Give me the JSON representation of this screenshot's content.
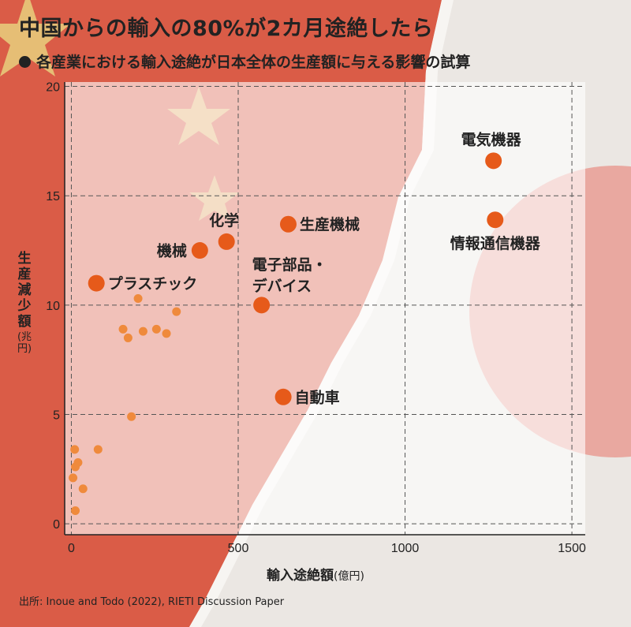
{
  "header": {
    "title": "中国からの輸入の80%が2カ月途絶したら",
    "subtitle": "各産業における輸入途絶が日本全体の生産額に与える影響の試算"
  },
  "axes": {
    "y_label_chars": [
      "生",
      "産",
      "減",
      "少",
      "額"
    ],
    "y_unit": "(兆円)",
    "x_label": "輸入途絶額",
    "x_unit": "(億円)"
  },
  "source": "出所: Inoue and Todo (2022), RIETI Discussion Paper",
  "colors": {
    "point": "#e65a1a",
    "small_point": "#ef8a3c",
    "china_red": "#d8503a",
    "japan_red": "#e8756a",
    "star": "#e7c97a"
  },
  "chart_data": {
    "type": "scatter",
    "title": "中国からの輸入の80%が2カ月途絶したら",
    "subtitle": "各産業における輸入途絶が日本全体の生産額に与える影響の試算",
    "xlabel": "輸入途絶額(億円)",
    "ylabel": "生産減少額(兆円)",
    "xlim": [
      -20,
      1540
    ],
    "ylim": [
      -0.5,
      20.2
    ],
    "xticks": [
      0,
      500,
      1000,
      1500
    ],
    "yticks": [
      0,
      5,
      10,
      15,
      20
    ],
    "grid": true,
    "labeled_points": [
      {
        "name": "電気機器",
        "x": 1265,
        "y": 16.6,
        "label_pos": "above"
      },
      {
        "name": "情報通信機器",
        "x": 1270,
        "y": 13.9,
        "label_pos": "below"
      },
      {
        "name": "生産機械",
        "x": 650,
        "y": 13.7,
        "label_pos": "right"
      },
      {
        "name": "化学",
        "x": 465,
        "y": 12.9,
        "label_pos": "above"
      },
      {
        "name": "機械",
        "x": 385,
        "y": 12.5,
        "label_pos": "left"
      },
      {
        "name": "プラスチック",
        "x": 75,
        "y": 11.0,
        "label_pos": "right"
      },
      {
        "name": "電子部品・デバイス",
        "x": 570,
        "y": 10.0,
        "label_pos": "above"
      },
      {
        "name": "自動車",
        "x": 635,
        "y": 5.8,
        "label_pos": "right"
      }
    ],
    "other_points": [
      {
        "x": 200,
        "y": 10.3
      },
      {
        "x": 315,
        "y": 9.7
      },
      {
        "x": 155,
        "y": 8.9
      },
      {
        "x": 215,
        "y": 8.8
      },
      {
        "x": 255,
        "y": 8.9
      },
      {
        "x": 285,
        "y": 8.7
      },
      {
        "x": 170,
        "y": 8.5
      },
      {
        "x": 180,
        "y": 4.9
      },
      {
        "x": 10,
        "y": 3.4
      },
      {
        "x": 80,
        "y": 3.4
      },
      {
        "x": 20,
        "y": 2.8
      },
      {
        "x": 12,
        "y": 2.6
      },
      {
        "x": 5,
        "y": 2.1
      },
      {
        "x": 35,
        "y": 1.6
      },
      {
        "x": 12,
        "y": 0.6
      }
    ]
  }
}
